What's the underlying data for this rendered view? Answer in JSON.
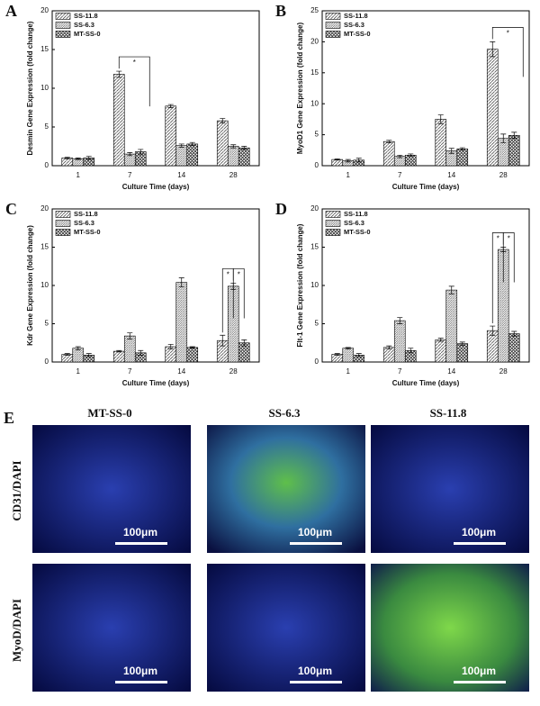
{
  "chart_data": [
    {
      "type": "bar",
      "panel": "A",
      "xlabel": "Culture Time (days)",
      "ylabel": "Desmin Gene Expression (fold change)",
      "categories": [
        "1",
        "7",
        "14",
        "28"
      ],
      "ylim": [
        0,
        20
      ],
      "yticks": [
        0,
        5,
        10,
        15,
        20
      ],
      "annotations": [
        "*"
      ],
      "series": [
        {
          "name": "SS-11.8",
          "color": "#555555",
          "values": [
            1.0,
            11.8,
            7.7,
            5.8
          ],
          "errors": [
            0.1,
            0.4,
            0.2,
            0.3
          ]
        },
        {
          "name": "SS-6.3",
          "color": "#777777",
          "values": [
            0.9,
            1.5,
            2.6,
            2.5
          ],
          "errors": [
            0.1,
            0.2,
            0.2,
            0.2
          ]
        },
        {
          "name": "MT-SS-0",
          "color": "#333333",
          "values": [
            1.0,
            1.8,
            2.8,
            2.3
          ],
          "errors": [
            0.2,
            0.3,
            0.2,
            0.2
          ]
        }
      ]
    },
    {
      "type": "bar",
      "panel": "B",
      "xlabel": "Culture Time (days)",
      "ylabel": "MyoD1 Gene Expression (fold change)",
      "categories": [
        "1",
        "7",
        "14",
        "28"
      ],
      "ylim": [
        0,
        25
      ],
      "yticks": [
        0,
        5,
        10,
        15,
        20,
        25
      ],
      "annotations": [
        "*"
      ],
      "series": [
        {
          "name": "SS-11.8",
          "color": "#555555",
          "values": [
            1.0,
            3.9,
            7.5,
            18.8
          ],
          "errors": [
            0.1,
            0.2,
            0.7,
            1.2
          ]
        },
        {
          "name": "SS-6.3",
          "color": "#777777",
          "values": [
            0.8,
            1.5,
            2.4,
            4.4
          ],
          "errors": [
            0.2,
            0.2,
            0.4,
            0.7
          ]
        },
        {
          "name": "MT-SS-0",
          "color": "#333333",
          "values": [
            0.9,
            1.7,
            2.7,
            4.9
          ],
          "errors": [
            0.3,
            0.2,
            0.2,
            0.5
          ]
        }
      ]
    },
    {
      "type": "bar",
      "panel": "C",
      "xlabel": "Culture Time (days)",
      "ylabel": "Kdr Gene Expression (fold change)",
      "categories": [
        "1",
        "7",
        "14",
        "28"
      ],
      "ylim": [
        0,
        20
      ],
      "yticks": [
        0,
        5,
        10,
        15,
        20
      ],
      "annotations": [
        "*",
        "*"
      ],
      "series": [
        {
          "name": "SS-11.8",
          "color": "#555555",
          "values": [
            1.0,
            1.4,
            2.0,
            2.8
          ],
          "errors": [
            0.1,
            0.1,
            0.3,
            0.7
          ]
        },
        {
          "name": "SS-6.3",
          "color": "#777777",
          "values": [
            1.8,
            3.4,
            10.4,
            9.9
          ],
          "errors": [
            0.2,
            0.4,
            0.6,
            0.4
          ]
        },
        {
          "name": "MT-SS-0",
          "color": "#333333",
          "values": [
            0.9,
            1.2,
            1.9,
            2.5
          ],
          "errors": [
            0.2,
            0.3,
            0.1,
            0.4
          ]
        }
      ]
    },
    {
      "type": "bar",
      "panel": "D",
      "xlabel": "Culture Time (days)",
      "ylabel": "Flt-1 Gene Expression (fold change)",
      "categories": [
        "1",
        "7",
        "14",
        "28"
      ],
      "ylim": [
        0,
        20
      ],
      "yticks": [
        0,
        5,
        10,
        15,
        20
      ],
      "annotations": [
        "*",
        "*"
      ],
      "series": [
        {
          "name": "SS-11.8",
          "color": "#555555",
          "values": [
            1.0,
            1.9,
            2.9,
            4.1
          ],
          "errors": [
            0.1,
            0.2,
            0.2,
            0.6
          ]
        },
        {
          "name": "SS-6.3",
          "color": "#777777",
          "values": [
            1.8,
            5.4,
            9.4,
            14.7
          ],
          "errors": [
            0.1,
            0.4,
            0.5,
            0.3
          ]
        },
        {
          "name": "MT-SS-0",
          "color": "#333333",
          "values": [
            0.9,
            1.5,
            2.4,
            3.7
          ],
          "errors": [
            0.2,
            0.3,
            0.2,
            0.3
          ]
        }
      ]
    }
  ],
  "micrographs": {
    "panel": "E",
    "columns": [
      "MT-SS-0",
      "SS-6.3",
      "SS-11.8"
    ],
    "rows": [
      "CD31/DAPI",
      "MyoD/DAPI"
    ],
    "scale_bar": "100μm"
  }
}
